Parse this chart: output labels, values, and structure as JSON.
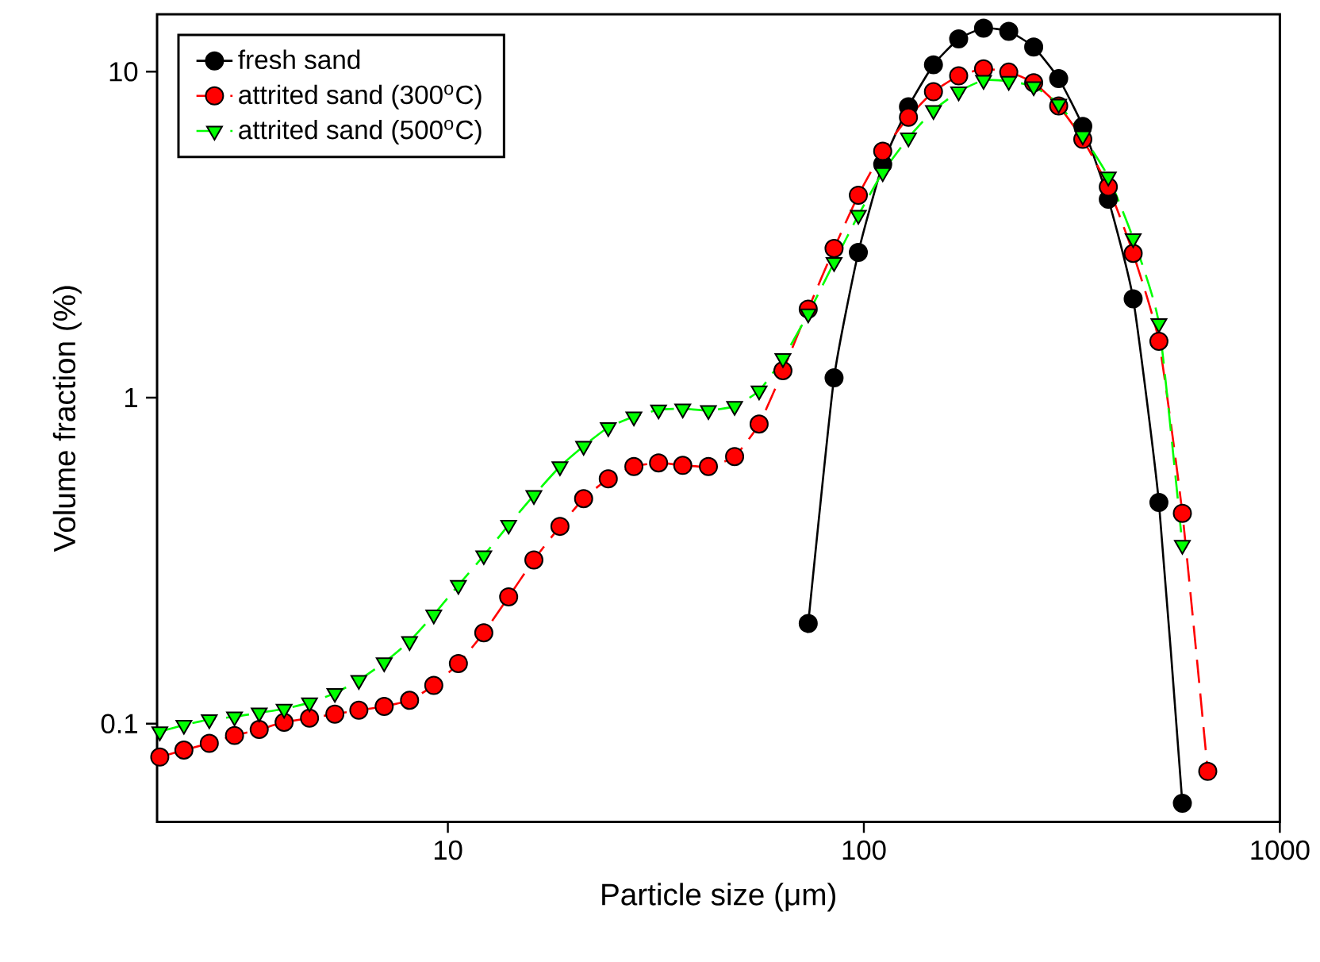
{
  "chart_data": {
    "type": "line",
    "xlabel": "Particle size (μm)",
    "ylabel": "Volume fraction (%)",
    "log": "xy",
    "xlim": [
      2,
      1000
    ],
    "ylim": [
      0.05,
      15
    ],
    "xticks": [
      10,
      100,
      1000
    ],
    "yticks": [
      0.1,
      1,
      10
    ],
    "legend": "top left",
    "series": [
      {
        "name": "fresh sand",
        "color": "#000000",
        "marker": "circle",
        "line_style": "solid",
        "x": [
          73.5,
          84.8,
          97.0,
          111,
          128,
          147,
          169,
          194,
          223,
          256,
          294,
          336,
          387,
          444,
          512,
          583
        ],
        "values": [
          0.203,
          1.15,
          2.79,
          5.2,
          7.81,
          10.5,
          12.6,
          13.6,
          13.3,
          11.9,
          9.53,
          6.8,
          4.06,
          2.01,
          0.477,
          0.057
        ]
      },
      {
        "name": "attrited sand (300$^{o}$C)",
        "color": "#ff0000",
        "marker": "circle",
        "line_style": "dashed",
        "x": [
          2.03,
          2.32,
          2.67,
          3.07,
          3.52,
          4.04,
          4.65,
          5.35,
          6.11,
          7.03,
          8.09,
          9.25,
          10.6,
          12.2,
          14.0,
          16.1,
          18.6,
          21.2,
          24.3,
          28.0,
          32.1,
          36.7,
          42.3,
          48.9,
          56.0,
          63.9,
          73.5,
          84.8,
          97.0,
          111,
          128,
          147,
          169,
          194,
          223,
          256,
          294,
          336,
          387,
          444,
          512,
          583,
          671
        ],
        "values": [
          0.079,
          0.083,
          0.087,
          0.092,
          0.096,
          0.101,
          0.104,
          0.107,
          0.11,
          0.113,
          0.118,
          0.131,
          0.153,
          0.19,
          0.245,
          0.318,
          0.403,
          0.49,
          0.564,
          0.615,
          0.631,
          0.62,
          0.615,
          0.66,
          0.83,
          1.21,
          1.87,
          2.87,
          4.18,
          5.7,
          7.25,
          8.68,
          9.71,
          10.2,
          9.97,
          9.25,
          7.85,
          6.2,
          4.43,
          2.77,
          1.49,
          0.442,
          0.0714
        ]
      },
      {
        "name": "attrited sand (500$^{o}$C)",
        "color": "#00ff00",
        "marker": "triangle",
        "line_style": "dashed",
        "x": [
          2.03,
          2.32,
          2.67,
          3.07,
          3.52,
          4.04,
          4.65,
          5.35,
          6.11,
          7.03,
          8.09,
          9.25,
          10.6,
          12.2,
          14.0,
          16.1,
          18.6,
          21.2,
          24.3,
          28.0,
          32.1,
          36.7,
          42.3,
          48.9,
          56.0,
          63.9,
          73.5,
          84.8,
          97.0,
          111,
          128,
          147,
          169,
          194,
          223,
          256,
          294,
          336,
          387,
          444,
          512,
          583
        ],
        "values": [
          0.0945,
          0.099,
          0.103,
          0.105,
          0.108,
          0.111,
          0.116,
          0.124,
          0.136,
          0.154,
          0.179,
          0.216,
          0.266,
          0.328,
          0.407,
          0.502,
          0.615,
          0.711,
          0.811,
          0.874,
          0.918,
          0.925,
          0.914,
          0.942,
          1.05,
          1.32,
          1.81,
          2.6,
          3.63,
          4.91,
          6.27,
          7.61,
          8.68,
          9.42,
          9.35,
          9.01,
          7.96,
          6.36,
          4.76,
          3.08,
          1.69,
          0.353
        ]
      }
    ]
  }
}
